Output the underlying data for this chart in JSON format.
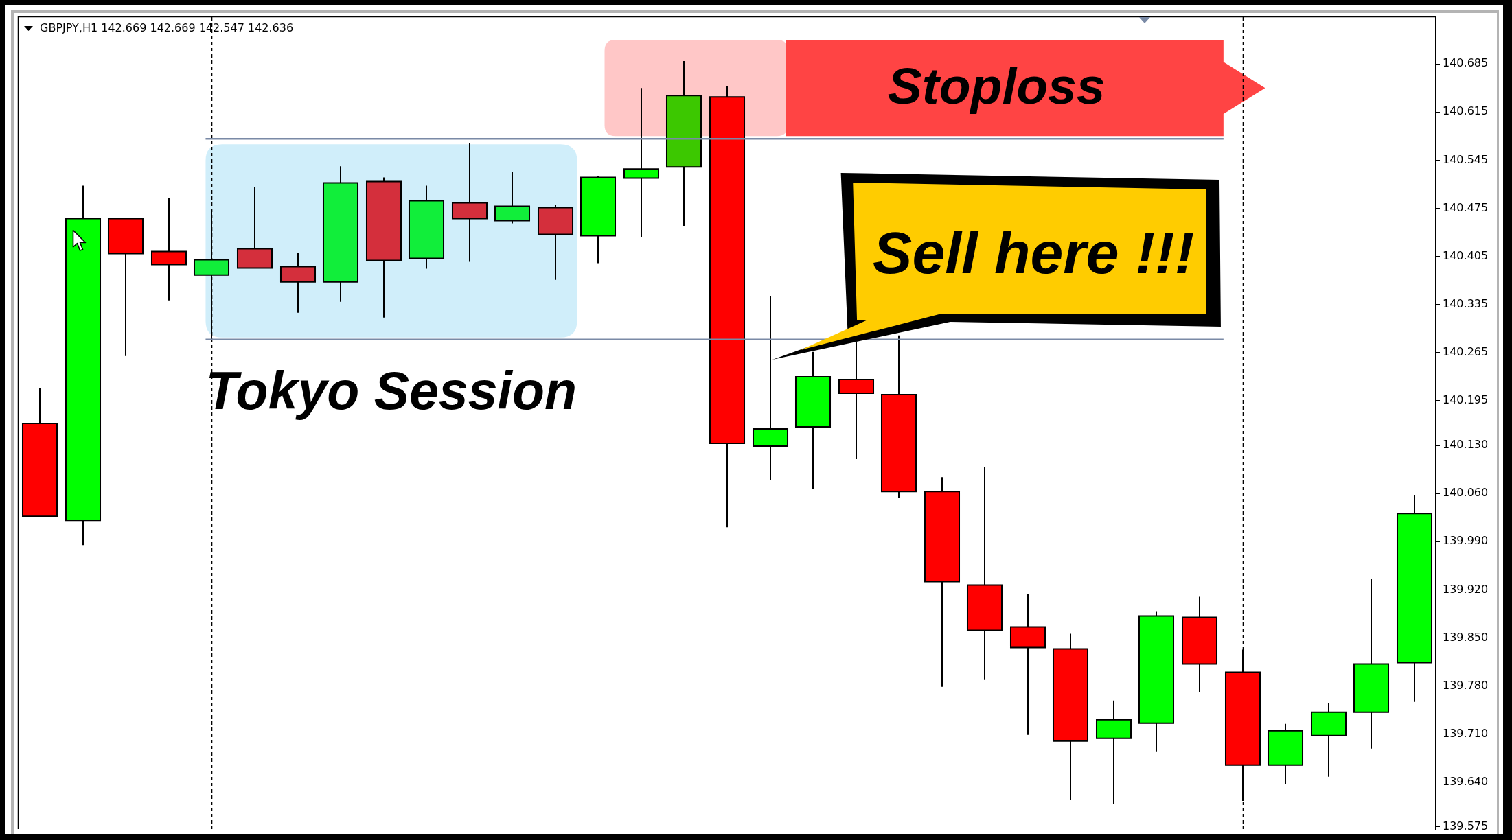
{
  "chart_data": {
    "type": "candlestick",
    "title": "GBPJPY,H1 142.669 142.669 142.547 142.636",
    "categories": [
      null,
      null,
      null,
      null,
      null,
      null,
      null,
      null,
      null,
      null,
      null,
      null,
      null,
      null,
      null,
      null,
      null,
      null,
      null,
      null,
      null,
      null,
      null,
      null,
      null,
      null,
      null,
      null,
      null,
      null,
      null,
      null,
      null
    ],
    "ohlc": [
      [
        140.162,
        140.213,
        140.027,
        140.027
      ],
      [
        140.021,
        140.508,
        139.985,
        140.46
      ],
      [
        140.46,
        140.46,
        140.26,
        140.409
      ],
      [
        140.412,
        140.49,
        140.341,
        140.393
      ],
      [
        140.378,
        140.47,
        140.282,
        140.4
      ],
      [
        140.416,
        140.506,
        140.388,
        140.388
      ],
      [
        140.39,
        140.41,
        140.323,
        140.368
      ],
      [
        140.368,
        140.536,
        140.339,
        140.512
      ],
      [
        140.514,
        140.52,
        140.316,
        140.399
      ],
      [
        140.402,
        140.508,
        140.387,
        140.486
      ],
      [
        140.483,
        140.57,
        140.397,
        140.46
      ],
      [
        140.457,
        140.528,
        140.453,
        140.478
      ],
      [
        140.476,
        140.48,
        140.371,
        140.437
      ],
      [
        140.435,
        140.522,
        140.395,
        140.52
      ],
      [
        140.519,
        140.65,
        140.433,
        140.532
      ],
      [
        140.535,
        140.689,
        140.449,
        140.639
      ],
      [
        140.637,
        140.653,
        140.011,
        140.133
      ],
      [
        140.129,
        140.347,
        140.08,
        140.154
      ],
      [
        140.157,
        140.266,
        140.067,
        140.23
      ],
      [
        140.226,
        140.28,
        140.11,
        140.206
      ],
      [
        140.204,
        140.29,
        140.054,
        140.063
      ],
      [
        140.063,
        140.084,
        139.779,
        139.932
      ],
      [
        139.927,
        140.099,
        139.789,
        139.861
      ],
      [
        139.866,
        139.914,
        139.709,
        139.836
      ],
      [
        139.834,
        139.856,
        139.614,
        139.7
      ],
      [
        139.704,
        139.759,
        139.608,
        139.731
      ],
      [
        139.726,
        139.888,
        139.684,
        139.882
      ],
      [
        139.88,
        139.91,
        139.771,
        139.812
      ],
      [
        139.8,
        139.833,
        139.613,
        139.665
      ],
      [
        139.665,
        139.725,
        139.638,
        139.715
      ],
      [
        139.708,
        139.755,
        139.648,
        139.742
      ],
      [
        139.742,
        139.936,
        139.689,
        139.812
      ],
      [
        139.814,
        140.058,
        139.757,
        140.031
      ]
    ],
    "colors": [
      "#ff0000",
      "#00ff00",
      "#ff0000",
      "#ff0000",
      "#11ee3a",
      "#d42f3c",
      "#d42f3c",
      "#11ee3a",
      "#d42f3c",
      "#11ee3a",
      "#d42f3c",
      "#11ee3a",
      "#d42f3c",
      "#00ff00",
      "#00ff00",
      "#3cc800",
      "#ff0000",
      "#00ff00",
      "#00ff00",
      "#ff0000",
      "#ff0000",
      "#ff0000",
      "#ff0000",
      "#ff0000",
      "#ff0000",
      "#00ff00",
      "#00ff00",
      "#ff0000",
      "#ff0000",
      "#00ff00",
      "#00ff00",
      "#00ff00",
      "#00ff00"
    ],
    "ylim": [
      139.572,
      140.753
    ],
    "yticks": [
      140.685,
      140.615,
      140.545,
      140.475,
      140.405,
      140.335,
      140.265,
      140.195,
      {
        "value": 140.13,
        "label": "140.130"
      },
      {
        "value": 140.06,
        "label": "140.060"
      },
      {
        "value": 139.99,
        "label": "139.990"
      },
      {
        "value": 139.92,
        "label": "139.920"
      },
      {
        "value": 139.85,
        "label": "139.850"
      },
      {
        "value": 139.78,
        "label": "139.780"
      },
      {
        "value": 139.71,
        "label": "139.710"
      },
      {
        "value": 139.64,
        "label": "139.640"
      },
      139.575
    ],
    "tick_labels": "y",
    "ref_lines": [
      {
        "axis": "y",
        "value": 140.576,
        "color": "#7a8aa6"
      },
      {
        "axis": "y",
        "value": 140.284,
        "color": "#7a8aa6"
      }
    ],
    "bands": [
      {
        "axis": "y",
        "from": 140.287,
        "to": 140.568,
        "label": "Tokyo Session",
        "color": "#d0eefa"
      },
      {
        "axis": "y",
        "from": 140.58,
        "to": 140.72,
        "color": "#ffc7c7"
      },
      {
        "axis": "y",
        "from": 140.58,
        "to": 140.72,
        "label": "Stoploss",
        "color": "#ff4444"
      }
    ],
    "annotations": [
      "Sell here !!!"
    ]
  }
}
